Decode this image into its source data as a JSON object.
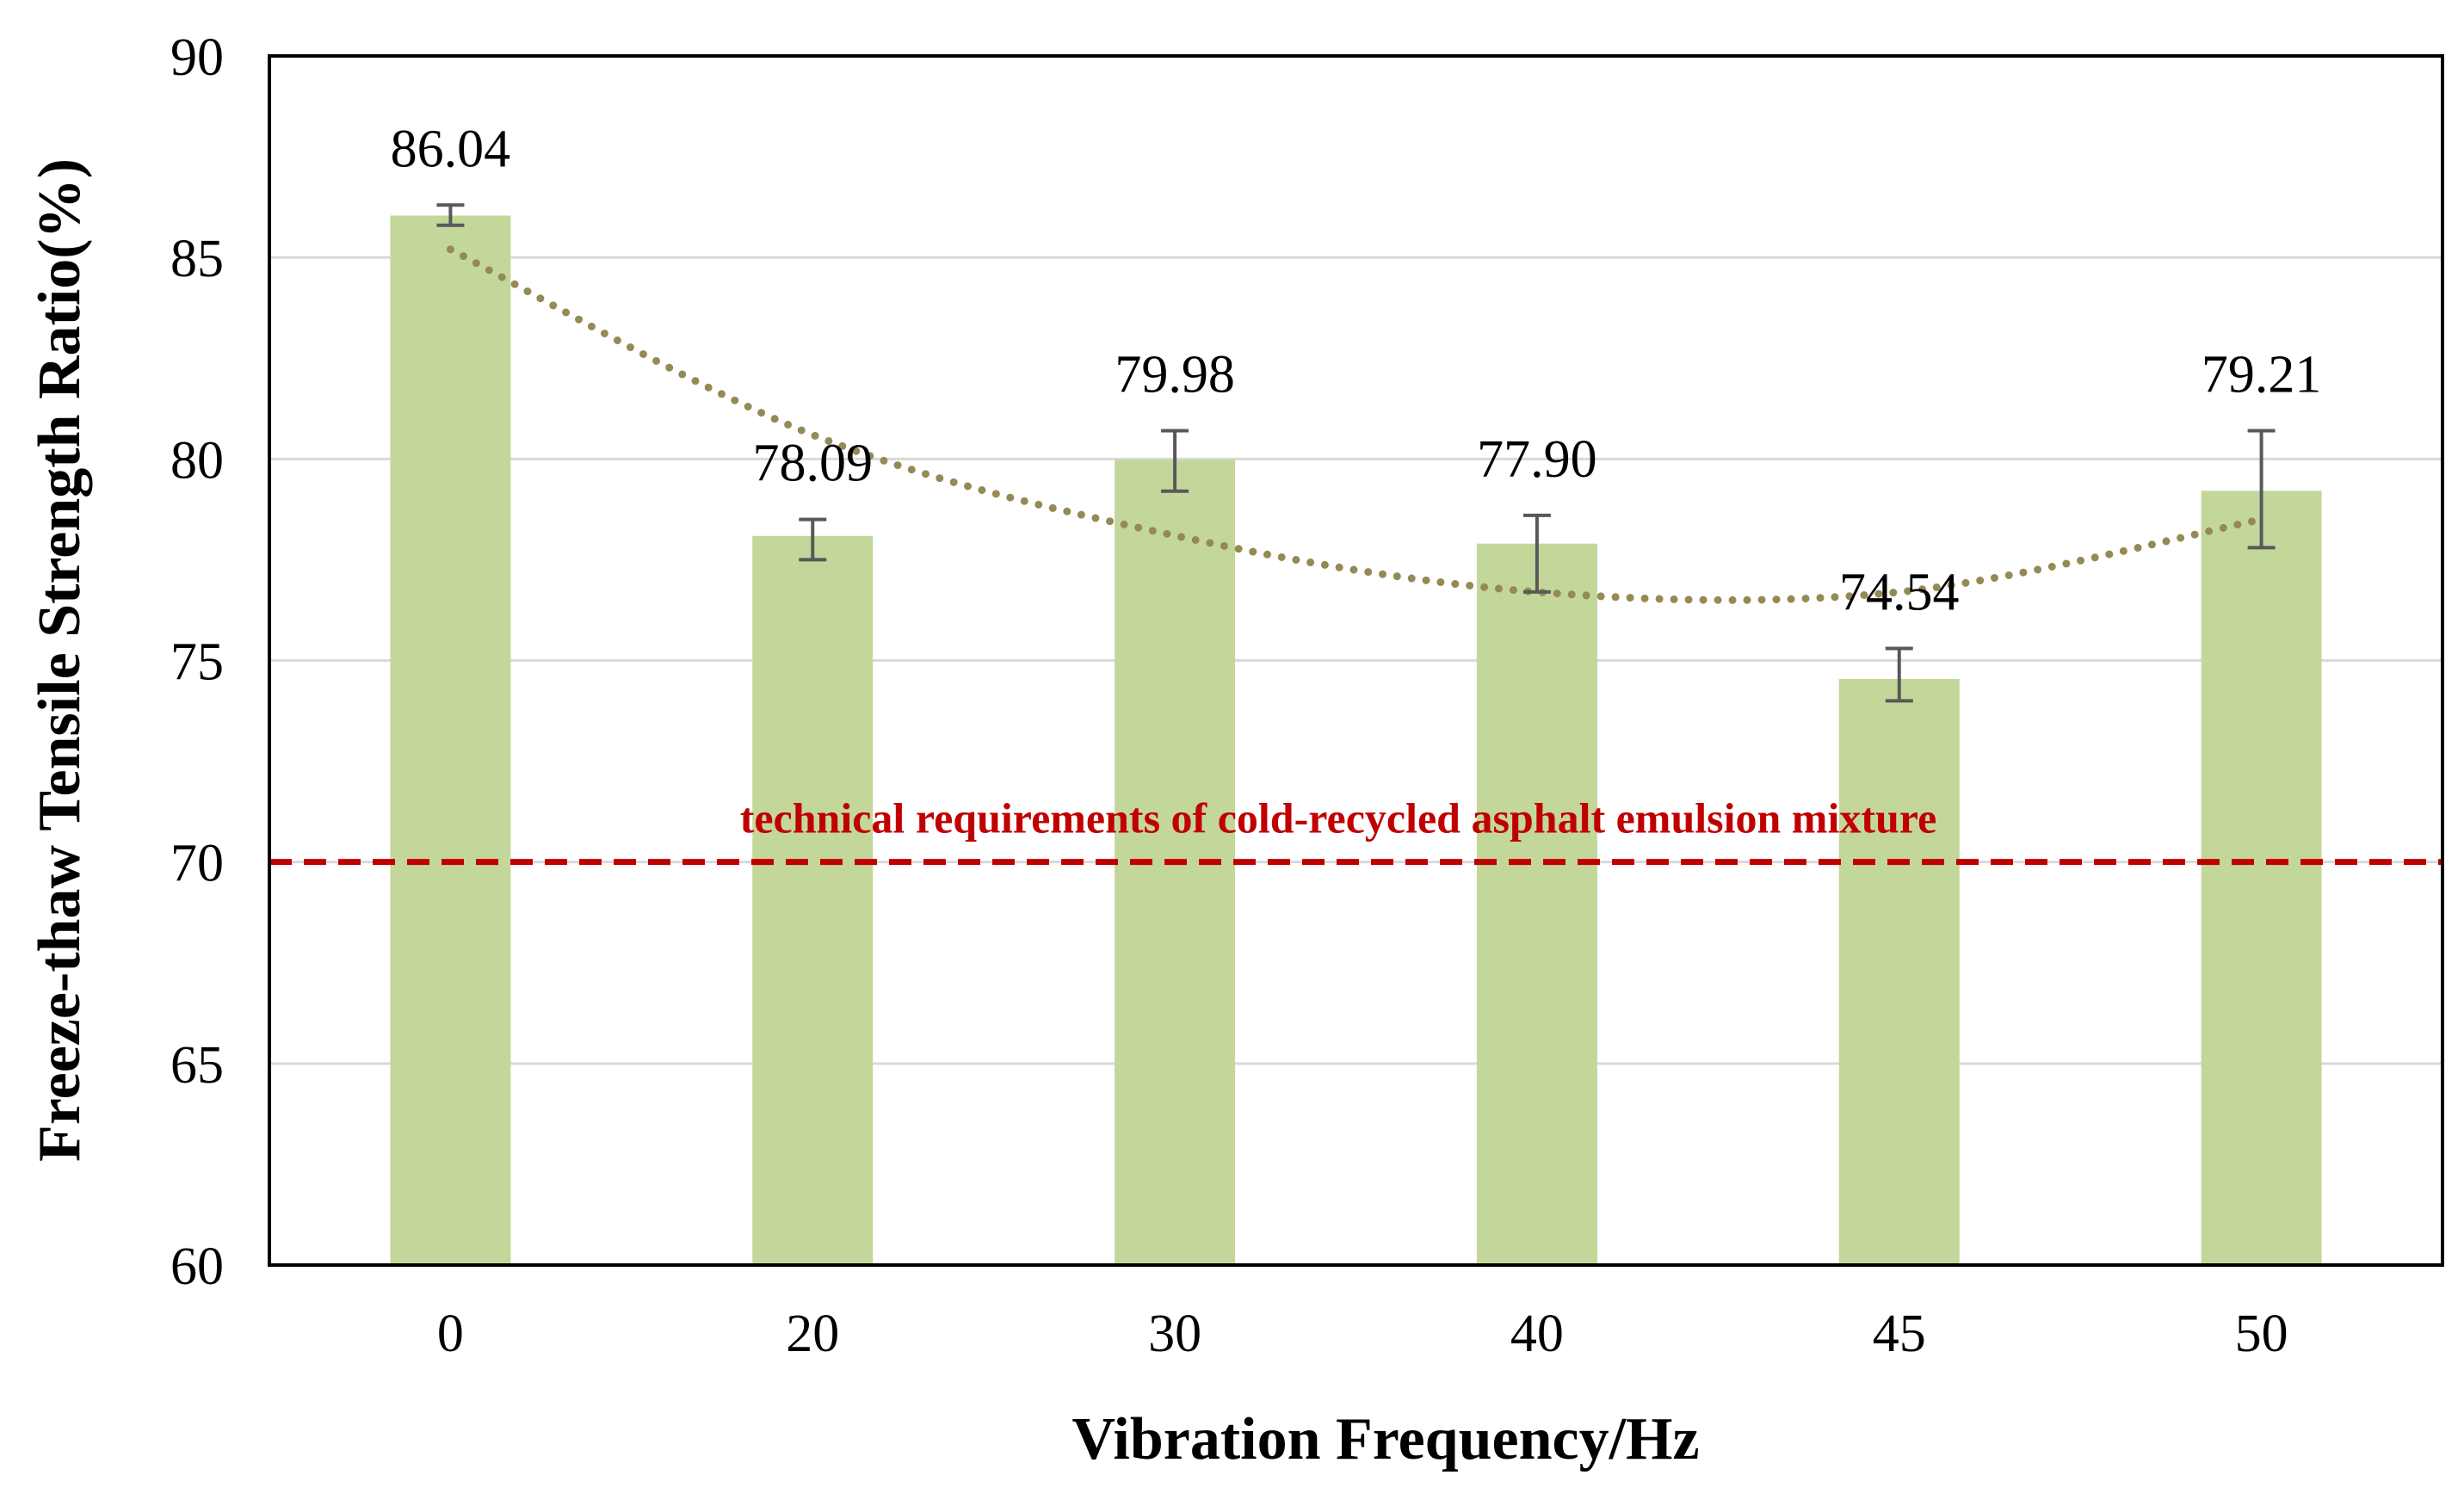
{
  "chart_data": {
    "type": "bar",
    "title": "",
    "xlabel": "Vibration Frequency/Hz",
    "ylabel": "Freeze-thaw Tensile Strength Ratio(%)",
    "categories": [
      "0",
      "20",
      "30",
      "40",
      "45",
      "50"
    ],
    "values": [
      86.04,
      78.09,
      79.98,
      77.9,
      74.54,
      79.21
    ],
    "data_labels": [
      "86.04",
      "78.09",
      "79.98",
      "77.90",
      "74.54",
      "79.21"
    ],
    "error_bars": [
      {
        "low": 85.8,
        "high": 86.3
      },
      {
        "low": 77.5,
        "high": 78.5
      },
      {
        "low": 79.2,
        "high": 80.7
      },
      {
        "low": 76.7,
        "high": 78.6
      },
      {
        "low": 74.0,
        "high": 75.3
      },
      {
        "low": 77.8,
        "high": 80.7
      }
    ],
    "ylim": [
      60,
      90
    ],
    "yticks": [
      "60",
      "65",
      "70",
      "75",
      "80",
      "85",
      "90"
    ],
    "gridlines": true,
    "trendline": {
      "type": "polynomial",
      "style": "dotted",
      "points": [
        {
          "x": "0",
          "y": 85.2
        },
        {
          "x": "20",
          "y": 80.6
        },
        {
          "x": "30",
          "y": 78.1
        },
        {
          "x": "40",
          "y": 76.7
        },
        {
          "x": "45",
          "y": 76.7
        },
        {
          "x": "50",
          "y": 78.5
        }
      ]
    },
    "reference_line": {
      "value": 70,
      "label": "technical requirements of cold-recycled asphalt emulsion mixture",
      "style": "dashed"
    },
    "colors": {
      "bar": "#c4d79b",
      "error_bar": "#595959",
      "trendline": "#948a54",
      "reference_line": "#c00000",
      "grid": "#d9d9d9",
      "axis": "#000000"
    }
  }
}
